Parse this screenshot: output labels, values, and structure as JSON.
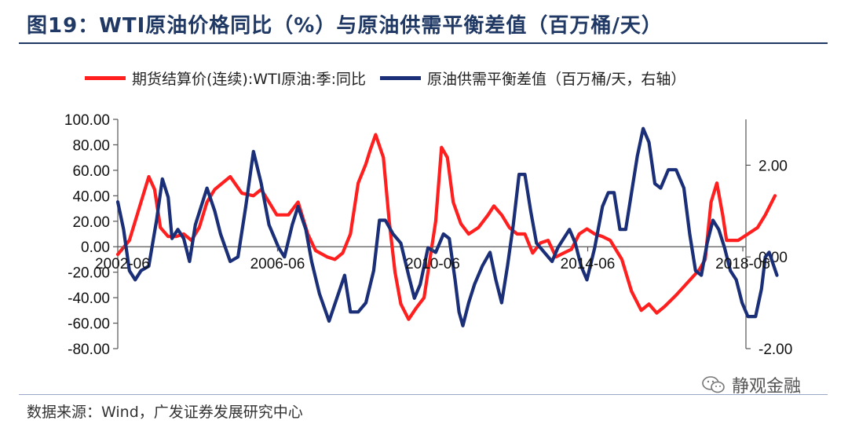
{
  "title": "图19：WTI原油价格同比（%）与原油供需平衡差值（百万桶/天）",
  "source": "数据来源：Wind，广发证券发展研究中心",
  "watermark": "静观金融",
  "colors": {
    "red": "#ff1f1f",
    "navy": "#1a2f78",
    "title": "#1f3864"
  },
  "chart_data": {
    "type": "line",
    "legend_position": "top",
    "grid": false,
    "left_axis": {
      "min": -80,
      "max": 100,
      "ticks": [
        "100.00",
        "80.00",
        "60.00",
        "40.00",
        "20.00",
        "0.00",
        "-20.00",
        "-40.00",
        "-60.00",
        "-80.00"
      ]
    },
    "right_axis": {
      "min": -2,
      "max": 3,
      "ticks": [
        "2.00",
        "0.00",
        "-2.00"
      ]
    },
    "x_range": [
      2002.3,
      2018.5
    ],
    "x_tick_labels": [
      {
        "label": "2002-06",
        "x": 2002.42
      },
      {
        "label": "2006-06",
        "x": 2006.42
      },
      {
        "label": "2010-06",
        "x": 2010.42
      },
      {
        "label": "2014-06",
        "x": 2014.42
      },
      {
        "label": "2018-06",
        "x": 2018.42
      }
    ],
    "series": [
      {
        "name": "期货结算价(连续):WTI原油:季:同比",
        "color": "#ff1f1f",
        "axis": "left",
        "points": [
          [
            2002.3,
            -6
          ],
          [
            2002.6,
            5
          ],
          [
            2002.9,
            35
          ],
          [
            2003.1,
            55
          ],
          [
            2003.25,
            45
          ],
          [
            2003.4,
            15
          ],
          [
            2003.6,
            8
          ],
          [
            2003.8,
            8
          ],
          [
            2004.0,
            10
          ],
          [
            2004.2,
            5
          ],
          [
            2004.4,
            15
          ],
          [
            2004.6,
            35
          ],
          [
            2004.8,
            45
          ],
          [
            2005.0,
            50
          ],
          [
            2005.2,
            55
          ],
          [
            2005.5,
            42
          ],
          [
            2005.8,
            40
          ],
          [
            2006.0,
            45
          ],
          [
            2006.2,
            35
          ],
          [
            2006.4,
            25
          ],
          [
            2006.7,
            25
          ],
          [
            2006.95,
            35
          ],
          [
            2007.2,
            10
          ],
          [
            2007.4,
            -3
          ],
          [
            2007.7,
            -8
          ],
          [
            2007.9,
            -10
          ],
          [
            2008.1,
            -5
          ],
          [
            2008.3,
            10
          ],
          [
            2008.5,
            50
          ],
          [
            2008.7,
            65
          ],
          [
            2008.8,
            75
          ],
          [
            2008.95,
            88
          ],
          [
            2009.15,
            70
          ],
          [
            2009.3,
            20
          ],
          [
            2009.45,
            -20
          ],
          [
            2009.6,
            -45
          ],
          [
            2009.8,
            -57
          ],
          [
            2010.0,
            -48
          ],
          [
            2010.2,
            -40
          ],
          [
            2010.35,
            -10
          ],
          [
            2010.5,
            20
          ],
          [
            2010.65,
            78
          ],
          [
            2010.8,
            70
          ],
          [
            2010.95,
            35
          ],
          [
            2011.15,
            18
          ],
          [
            2011.35,
            10
          ],
          [
            2011.6,
            15
          ],
          [
            2011.85,
            25
          ],
          [
            2012.0,
            32
          ],
          [
            2012.2,
            25
          ],
          [
            2012.4,
            15
          ],
          [
            2012.6,
            10
          ],
          [
            2012.8,
            10
          ],
          [
            2013.0,
            -5
          ],
          [
            2013.2,
            3
          ],
          [
            2013.4,
            5
          ],
          [
            2013.6,
            -8
          ],
          [
            2013.8,
            -5
          ],
          [
            2014.0,
            -2
          ],
          [
            2014.2,
            10
          ],
          [
            2014.4,
            14
          ],
          [
            2014.6,
            10
          ],
          [
            2014.8,
            8
          ],
          [
            2015.0,
            5
          ],
          [
            2015.3,
            -10
          ],
          [
            2015.55,
            -35
          ],
          [
            2015.8,
            -50
          ],
          [
            2016.0,
            -45
          ],
          [
            2016.2,
            -52
          ],
          [
            2016.4,
            -47
          ],
          [
            2016.7,
            -38
          ],
          [
            2017.0,
            -28
          ],
          [
            2017.3,
            -18
          ],
          [
            2017.45,
            -10
          ],
          [
            2017.6,
            35
          ],
          [
            2017.75,
            50
          ],
          [
            2017.9,
            25
          ],
          [
            2018.0,
            5
          ],
          [
            2018.3,
            5
          ],
          [
            2018.55,
            10
          ],
          [
            2018.8,
            15
          ],
          [
            2019.0,
            25
          ],
          [
            2019.25,
            40
          ]
        ]
      },
      {
        "name": "原油供需平衡差值（百万桶/天，右轴）",
        "color": "#1a2f78",
        "axis": "right",
        "points": [
          [
            2002.3,
            1.2
          ],
          [
            2002.45,
            0.6
          ],
          [
            2002.6,
            -0.3
          ],
          [
            2002.75,
            -0.5
          ],
          [
            2002.9,
            -0.3
          ],
          [
            2003.1,
            -0.2
          ],
          [
            2003.3,
            0.8
          ],
          [
            2003.45,
            1.7
          ],
          [
            2003.6,
            1.3
          ],
          [
            2003.7,
            0.4
          ],
          [
            2003.85,
            0.6
          ],
          [
            2004.0,
            0.4
          ],
          [
            2004.15,
            -0.1
          ],
          [
            2004.3,
            0.7
          ],
          [
            2004.6,
            1.5
          ],
          [
            2004.8,
            1.0
          ],
          [
            2004.95,
            0.5
          ],
          [
            2005.2,
            -0.1
          ],
          [
            2005.4,
            0.0
          ],
          [
            2005.6,
            1.1
          ],
          [
            2005.8,
            2.3
          ],
          [
            2006.0,
            1.6
          ],
          [
            2006.2,
            0.7
          ],
          [
            2006.45,
            0.2
          ],
          [
            2006.6,
            0.0
          ],
          [
            2006.8,
            0.7
          ],
          [
            2006.95,
            1.1
          ],
          [
            2007.15,
            0.6
          ],
          [
            2007.3,
            -0.1
          ],
          [
            2007.5,
            -0.8
          ],
          [
            2007.75,
            -1.4
          ],
          [
            2007.95,
            -0.9
          ],
          [
            2008.15,
            -0.4
          ],
          [
            2008.3,
            -1.2
          ],
          [
            2008.5,
            -1.2
          ],
          [
            2008.7,
            -1.0
          ],
          [
            2008.9,
            -0.3
          ],
          [
            2009.05,
            0.8
          ],
          [
            2009.2,
            0.8
          ],
          [
            2009.4,
            0.5
          ],
          [
            2009.6,
            0.3
          ],
          [
            2009.8,
            -0.4
          ],
          [
            2009.95,
            -0.9
          ],
          [
            2010.1,
            -0.6
          ],
          [
            2010.3,
            0.2
          ],
          [
            2010.5,
            0.1
          ],
          [
            2010.7,
            0.5
          ],
          [
            2010.85,
            0.4
          ],
          [
            2011.0,
            -0.5
          ],
          [
            2011.1,
            -1.2
          ],
          [
            2011.2,
            -1.5
          ],
          [
            2011.35,
            -1.0
          ],
          [
            2011.5,
            -0.6
          ],
          [
            2011.7,
            -0.2
          ],
          [
            2011.9,
            0.1
          ],
          [
            2012.05,
            -0.5
          ],
          [
            2012.2,
            -1.0
          ],
          [
            2012.35,
            -0.2
          ],
          [
            2012.5,
            0.7
          ],
          [
            2012.65,
            1.8
          ],
          [
            2012.8,
            1.8
          ],
          [
            2012.95,
            1.0
          ],
          [
            2013.1,
            0.3
          ],
          [
            2013.3,
            0.1
          ],
          [
            2013.5,
            -0.1
          ],
          [
            2013.65,
            0.2
          ],
          [
            2013.8,
            0.4
          ],
          [
            2013.95,
            0.6
          ],
          [
            2014.1,
            0.3
          ],
          [
            2014.25,
            -0.2
          ],
          [
            2014.4,
            -0.5
          ],
          [
            2014.6,
            0.2
          ],
          [
            2014.8,
            1.1
          ],
          [
            2014.95,
            1.4
          ],
          [
            2015.1,
            1.4
          ],
          [
            2015.25,
            0.6
          ],
          [
            2015.4,
            0.6
          ],
          [
            2015.55,
            1.4
          ],
          [
            2015.7,
            2.2
          ],
          [
            2015.85,
            2.8
          ],
          [
            2016.0,
            2.5
          ],
          [
            2016.15,
            1.6
          ],
          [
            2016.3,
            1.5
          ],
          [
            2016.5,
            1.9
          ],
          [
            2016.7,
            1.9
          ],
          [
            2016.9,
            1.5
          ],
          [
            2017.05,
            0.5
          ],
          [
            2017.2,
            -0.3
          ],
          [
            2017.35,
            -0.4
          ],
          [
            2017.5,
            0.3
          ],
          [
            2017.65,
            0.8
          ],
          [
            2017.8,
            0.6
          ],
          [
            2017.95,
            0.2
          ],
          [
            2018.1,
            -0.3
          ],
          [
            2018.25,
            -0.5
          ],
          [
            2018.4,
            -1.0
          ],
          [
            2018.55,
            -1.3
          ],
          [
            2018.75,
            -1.3
          ],
          [
            2018.9,
            -0.7
          ],
          [
            2019.0,
            0.0
          ],
          [
            2019.1,
            0.1
          ],
          [
            2019.3,
            -0.4
          ]
        ]
      }
    ]
  }
}
